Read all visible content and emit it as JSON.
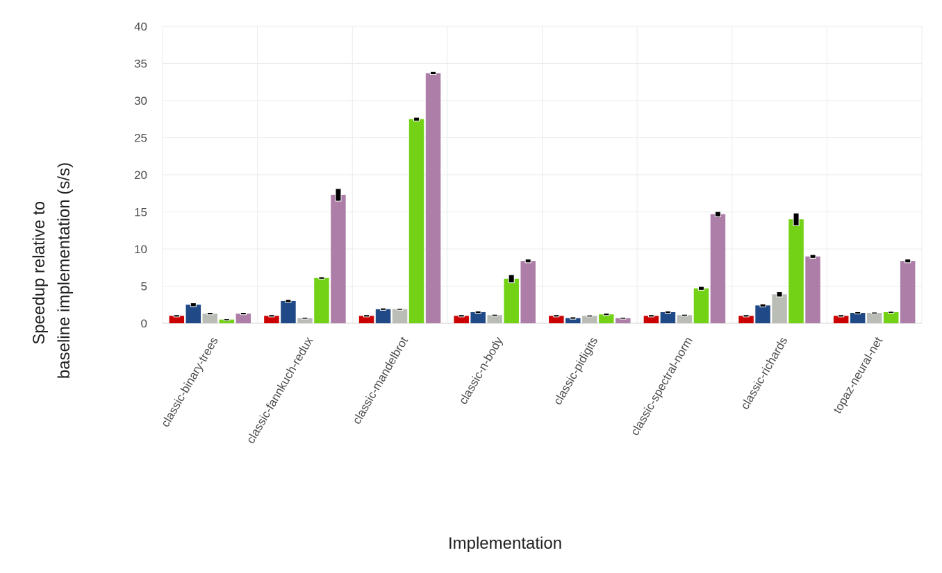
{
  "chart_data": {
    "type": "bar",
    "xlabel": "Implementation",
    "ylabel_lines": [
      "Speedup relative to",
      "baseline implementation (s/s)"
    ],
    "ylim": [
      0,
      40
    ],
    "yticks": [
      0,
      5,
      10,
      15,
      20,
      25,
      30,
      35,
      40
    ],
    "grid": true,
    "legend": "none",
    "categories": [
      "classic-binary-trees",
      "classic-fannkuch-redux",
      "classic-mandelbrot",
      "classic-n-body",
      "classic-pidigits",
      "classic-spectral-norm",
      "classic-richards",
      "topaz-neural-net"
    ],
    "series": [
      {
        "color": "#cc0000",
        "values": [
          1.0,
          1.0,
          1.0,
          1.0,
          1.0,
          1.0,
          1.0,
          1.0
        ],
        "err": [
          0.1,
          0.1,
          0.1,
          0.1,
          0.1,
          0.1,
          0.1,
          0.1
        ]
      },
      {
        "color": "#204a87",
        "values": [
          2.5,
          3.0,
          1.9,
          1.5,
          0.7,
          1.5,
          2.4,
          1.4
        ],
        "err": [
          0.2,
          0.15,
          0.1,
          0.1,
          0.1,
          0.1,
          0.15,
          0.1
        ]
      },
      {
        "color": "#babdb6",
        "values": [
          1.3,
          0.7,
          1.9,
          1.1,
          1.0,
          1.1,
          3.9,
          1.4
        ],
        "err": [
          0.1,
          0.05,
          0.05,
          0.05,
          0.05,
          0.05,
          0.3,
          0.05
        ]
      },
      {
        "color": "#73d216",
        "values": [
          0.5,
          6.1,
          27.5,
          6.0,
          1.2,
          4.7,
          14.0,
          1.5
        ],
        "err": [
          0.05,
          0.1,
          0.2,
          0.5,
          0.1,
          0.2,
          0.8,
          0.05
        ]
      },
      {
        "color": "#ad7fa8",
        "values": [
          1.3,
          17.3,
          33.7,
          8.4,
          0.7,
          14.7,
          9.0,
          8.4
        ],
        "err": [
          0.1,
          0.8,
          0.15,
          0.2,
          0.05,
          0.3,
          0.2,
          0.2
        ]
      }
    ]
  }
}
